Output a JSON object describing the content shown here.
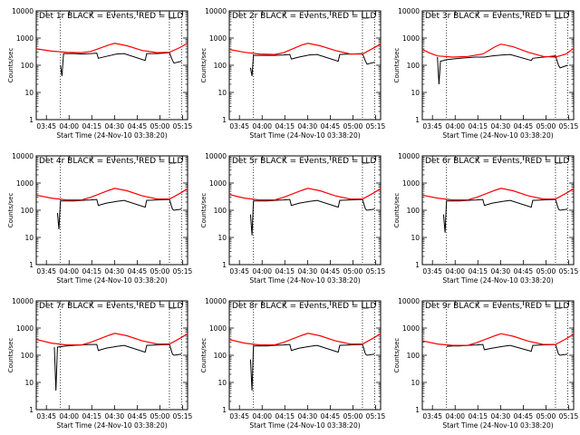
{
  "chart_data": [
    {
      "type": "line",
      "title": "Det 1r BLACK = Events, RED = LLD",
      "ylabel": "Counts/sec",
      "xlabel": "Start Time (24-Nov-10 03:38:20)",
      "xticks": [
        "03:45",
        "04:00",
        "04:15",
        "04:30",
        "04:45",
        "05:00",
        "05:15"
      ],
      "yticks": [
        "1",
        "10",
        "100",
        "1000",
        "10000"
      ],
      "yscale": "log",
      "ylim": [
        1,
        10000
      ],
      "x_minutes_since_03_38_20": [
        0,
        10,
        20,
        30,
        40,
        50,
        60,
        70,
        80,
        90,
        100
      ],
      "series": [
        {
          "name": "Events",
          "color": "#000000",
          "x": [
            16,
            17,
            18,
            20,
            24,
            25,
            30,
            36,
            40,
            41,
            46,
            53,
            58,
            72,
            73,
            80,
            88,
            90,
            91,
            96
          ],
          "y": [
            100,
            40,
            270,
            270,
            270,
            270,
            260,
            270,
            280,
            180,
            210,
            260,
            270,
            150,
            270,
            270,
            290,
            150,
            120,
            140
          ]
        },
        {
          "name": "LLD",
          "color": "#ff0000",
          "x": [
            0,
            10,
            20,
            30,
            36,
            48,
            52,
            60,
            70,
            80,
            88,
            95,
            100
          ],
          "y": [
            400,
            330,
            300,
            290,
            320,
            560,
            640,
            520,
            350,
            290,
            300,
            450,
            650
          ]
        }
      ]
    },
    {
      "type": "line",
      "title": "Det 2r BLACK = Events, RED = LLD",
      "ylabel": "Counts/sec",
      "xlabel": "Start Time (24-Nov-10 03:38:20)",
      "xticks": [
        "03:45",
        "04:00",
        "04:15",
        "04:30",
        "04:45",
        "05:00",
        "05:15"
      ],
      "yticks": [
        "1",
        "10",
        "100",
        "1000",
        "10000"
      ],
      "yscale": "log",
      "ylim": [
        1,
        10000
      ],
      "series": [
        {
          "name": "Events",
          "color": "#000000",
          "x": [
            14,
            15,
            16,
            20,
            25,
            30,
            36,
            40,
            41,
            46,
            53,
            58,
            72,
            73,
            80,
            88,
            90,
            91,
            96
          ],
          "y": [
            80,
            40,
            230,
            230,
            230,
            230,
            240,
            250,
            170,
            200,
            240,
            250,
            140,
            250,
            260,
            270,
            140,
            110,
            130
          ]
        },
        {
          "name": "LLD",
          "color": "#ff0000",
          "x": [
            0,
            10,
            20,
            30,
            36,
            48,
            52,
            60,
            70,
            80,
            88,
            95,
            100
          ],
          "y": [
            380,
            300,
            260,
            250,
            290,
            560,
            640,
            520,
            350,
            260,
            260,
            420,
            600
          ]
        }
      ]
    },
    {
      "type": "line",
      "title": "Det 3r BLACK = Events, RED = LLD",
      "ylabel": "Counts/sec",
      "xlabel": "Start Time (24-Nov-10 03:38:20)",
      "xticks": [
        "03:45",
        "04:00",
        "04:15",
        "04:30",
        "04:45",
        "05:00",
        "05:15"
      ],
      "yticks": [
        "1",
        "10",
        "100",
        "1000",
        "10000"
      ],
      "yscale": "log",
      "ylim": [
        1,
        10000
      ],
      "series": [
        {
          "name": "Events",
          "color": "#000000",
          "x": [
            10,
            11,
            12,
            16,
            20,
            25,
            30,
            35,
            40,
            41,
            46,
            53,
            58,
            72,
            73,
            80,
            88,
            90,
            91,
            96
          ],
          "y": [
            200,
            20,
            140,
            160,
            170,
            180,
            190,
            200,
            200,
            200,
            220,
            240,
            250,
            150,
            180,
            200,
            220,
            100,
            80,
            100
          ]
        },
        {
          "name": "LLD",
          "color": "#ff0000",
          "x": [
            0,
            5,
            10,
            20,
            30,
            40,
            48,
            52,
            60,
            70,
            80,
            88,
            95,
            100
          ],
          "y": [
            380,
            280,
            220,
            200,
            210,
            260,
            480,
            600,
            480,
            300,
            210,
            200,
            260,
            420
          ]
        }
      ]
    },
    {
      "type": "line",
      "title": "Det 4r BLACK = Events, RED = LLD",
      "ylabel": "Counts/sec",
      "xlabel": "Start Time (24-Nov-10 03:38:20)",
      "xticks": [
        "03:45",
        "04:00",
        "04:15",
        "04:30",
        "04:45",
        "05:00",
        "05:15"
      ],
      "yticks": [
        "1",
        "10",
        "100",
        "1000",
        "10000"
      ],
      "yscale": "log",
      "ylim": [
        1,
        10000
      ],
      "series": [
        {
          "name": "Events",
          "color": "#000000",
          "x": [
            14,
            15,
            16,
            20,
            25,
            30,
            36,
            40,
            41,
            46,
            53,
            58,
            72,
            73,
            80,
            88,
            90,
            91,
            96
          ],
          "y": [
            80,
            20,
            220,
            220,
            220,
            230,
            240,
            250,
            150,
            180,
            210,
            230,
            130,
            230,
            240,
            250,
            110,
            100,
            110
          ]
        },
        {
          "name": "LLD",
          "color": "#ff0000",
          "x": [
            0,
            10,
            20,
            30,
            36,
            48,
            52,
            60,
            70,
            80,
            88,
            95,
            100
          ],
          "y": [
            360,
            280,
            240,
            240,
            300,
            540,
            640,
            520,
            340,
            260,
            260,
            420,
            620
          ]
        }
      ]
    },
    {
      "type": "line",
      "title": "Det 5r BLACK = Events, RED = LLD",
      "ylabel": "Counts/sec",
      "xlabel": "Start Time (24-Nov-10 03:38:20)",
      "xticks": [
        "03:45",
        "04:00",
        "04:15",
        "04:30",
        "04:45",
        "05:00",
        "05:15"
      ],
      "yticks": [
        "1",
        "10",
        "100",
        "1000",
        "10000"
      ],
      "yscale": "log",
      "ylim": [
        1,
        10000
      ],
      "series": [
        {
          "name": "Events",
          "color": "#000000",
          "x": [
            14,
            15,
            16,
            20,
            25,
            30,
            36,
            40,
            41,
            46,
            53,
            58,
            72,
            73,
            80,
            88,
            90,
            91,
            96
          ],
          "y": [
            70,
            12,
            220,
            220,
            220,
            230,
            240,
            250,
            150,
            180,
            210,
            230,
            130,
            230,
            240,
            250,
            110,
            100,
            110
          ]
        },
        {
          "name": "LLD",
          "color": "#ff0000",
          "x": [
            0,
            10,
            20,
            30,
            36,
            48,
            52,
            60,
            70,
            80,
            88,
            95,
            100
          ],
          "y": [
            380,
            280,
            240,
            240,
            300,
            540,
            640,
            520,
            340,
            260,
            260,
            420,
            620
          ]
        }
      ]
    },
    {
      "type": "line",
      "title": "Det 6r BLACK = Events, RED = LLD",
      "ylabel": "Counts/sec",
      "xlabel": "Start Time (24-Nov-10 03:38:20)",
      "xticks": [
        "03:45",
        "04:00",
        "04:15",
        "04:30",
        "04:45",
        "05:00",
        "05:15"
      ],
      "yticks": [
        "1",
        "10",
        "100",
        "1000",
        "10000"
      ],
      "yscale": "log",
      "ylim": [
        1,
        10000
      ],
      "series": [
        {
          "name": "Events",
          "color": "#000000",
          "x": [
            14,
            15,
            16,
            20,
            25,
            30,
            36,
            40,
            41,
            46,
            53,
            58,
            72,
            73,
            80,
            88,
            90,
            91,
            96
          ],
          "y": [
            70,
            15,
            220,
            220,
            220,
            230,
            240,
            250,
            150,
            180,
            210,
            230,
            130,
            230,
            240,
            250,
            110,
            100,
            110
          ]
        },
        {
          "name": "LLD",
          "color": "#ff0000",
          "x": [
            0,
            10,
            20,
            30,
            36,
            48,
            52,
            60,
            70,
            80,
            88,
            95,
            100
          ],
          "y": [
            360,
            280,
            240,
            240,
            300,
            540,
            640,
            520,
            340,
            260,
            260,
            420,
            620
          ]
        }
      ]
    },
    {
      "type": "line",
      "title": "Det 7r BLACK = Events, RED = LLD",
      "ylabel": "Counts/sec",
      "xlabel": "Start Time (24-Nov-10 03:38:20)",
      "xticks": [
        "03:45",
        "04:00",
        "04:15",
        "04:30",
        "04:45",
        "05:00",
        "05:15"
      ],
      "yticks": [
        "1",
        "10",
        "100",
        "1000",
        "10000"
      ],
      "yscale": "log",
      "ylim": [
        1,
        10000
      ],
      "series": [
        {
          "name": "Events",
          "color": "#000000",
          "x": [
            12,
            13,
            14,
            20,
            25,
            30,
            36,
            40,
            41,
            46,
            53,
            58,
            72,
            73,
            80,
            88,
            90,
            91,
            96
          ],
          "y": [
            200,
            5,
            200,
            220,
            230,
            240,
            250,
            250,
            150,
            180,
            210,
            230,
            130,
            230,
            240,
            250,
            110,
            100,
            110
          ]
        },
        {
          "name": "LLD",
          "color": "#ff0000",
          "x": [
            0,
            10,
            20,
            30,
            36,
            48,
            52,
            60,
            70,
            80,
            88,
            95,
            100
          ],
          "y": [
            380,
            280,
            240,
            240,
            300,
            540,
            640,
            520,
            340,
            260,
            260,
            420,
            620
          ]
        }
      ]
    },
    {
      "type": "line",
      "title": "Det 8r BLACK = Events, RED = LLD",
      "ylabel": "Counts/sec",
      "xlabel": "Start Time (24-Nov-10 03:38:20)",
      "xticks": [
        "03:45",
        "04:00",
        "04:15",
        "04:30",
        "04:45",
        "05:00",
        "05:15"
      ],
      "yticks": [
        "1",
        "10",
        "100",
        "1000",
        "10000"
      ],
      "yscale": "log",
      "ylim": [
        1,
        10000
      ],
      "series": [
        {
          "name": "Events",
          "color": "#000000",
          "x": [
            14,
            15,
            16,
            20,
            25,
            30,
            36,
            40,
            41,
            46,
            53,
            58,
            72,
            73,
            80,
            88,
            90,
            91,
            96
          ],
          "y": [
            70,
            5,
            220,
            220,
            220,
            230,
            240,
            250,
            150,
            180,
            210,
            230,
            130,
            230,
            240,
            250,
            110,
            100,
            110
          ]
        },
        {
          "name": "LLD",
          "color": "#ff0000",
          "x": [
            0,
            10,
            20,
            30,
            36,
            48,
            52,
            60,
            70,
            80,
            88,
            95,
            100
          ],
          "y": [
            380,
            280,
            240,
            240,
            300,
            540,
            640,
            520,
            340,
            260,
            260,
            420,
            620
          ]
        }
      ]
    },
    {
      "type": "line",
      "title": "Det 9r BLACK = Events, RED = LLD",
      "ylabel": "Counts/sec",
      "xlabel": "Start Time (24-Nov-10 03:38:20)",
      "xticks": [
        "03:45",
        "04:00",
        "04:15",
        "04:30",
        "04:45",
        "05:00",
        "05:15"
      ],
      "yticks": [
        "1",
        "10",
        "100",
        "1000",
        "10000"
      ],
      "yscale": "log",
      "ylim": [
        1,
        10000
      ],
      "series": [
        {
          "name": "Events",
          "color": "#000000",
          "x": [
            16,
            20,
            25,
            30,
            36,
            40,
            41,
            46,
            53,
            58,
            72,
            73,
            80,
            88,
            90,
            91,
            96
          ],
          "y": [
            210,
            220,
            220,
            230,
            240,
            250,
            160,
            180,
            210,
            230,
            140,
            230,
            240,
            250,
            110,
            100,
            110
          ]
        },
        {
          "name": "LLD",
          "color": "#ff0000",
          "x": [
            0,
            10,
            20,
            30,
            36,
            48,
            52,
            60,
            70,
            80,
            88,
            95,
            100
          ],
          "y": [
            340,
            260,
            230,
            230,
            290,
            520,
            620,
            500,
            330,
            250,
            250,
            400,
            600
          ]
        }
      ]
    }
  ]
}
